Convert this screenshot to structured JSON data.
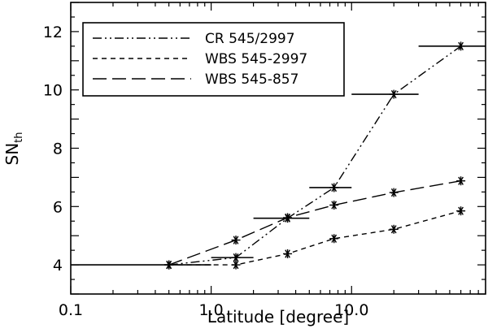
{
  "chart_data": {
    "type": "line",
    "xlabel": "Latitude [degree]",
    "ylabel_main": "SN",
    "ylabel_sub": "th",
    "xscale": "log",
    "xlim": [
      0.1,
      90
    ],
    "ylim": [
      3.0,
      13.0
    ],
    "x_ticks": [
      {
        "value": 0.1,
        "label": "0.1"
      },
      {
        "value": 1.0,
        "label": "1.0"
      },
      {
        "value": 10.0,
        "label": "10.0"
      }
    ],
    "y_ticks": [
      {
        "value": 4,
        "label": "4"
      },
      {
        "value": 6,
        "label": "6"
      },
      {
        "value": 8,
        "label": "8"
      },
      {
        "value": 10,
        "label": "10"
      },
      {
        "value": 12,
        "label": "12"
      }
    ],
    "legend_position": "top-left",
    "series": [
      {
        "name": "CR 545/2997",
        "dash": "dashdotdot",
        "x": [
          0.5,
          1.5,
          3.5,
          7.5,
          20,
          60
        ],
        "y": [
          4.0,
          4.25,
          5.6,
          6.65,
          9.85,
          11.5
        ],
        "xerr": [
          [
            0.1,
            1.0
          ],
          [
            1.0,
            2.0
          ],
          [
            2.0,
            5.0
          ],
          [
            5.0,
            10.0
          ],
          [
            10.0,
            30.0
          ],
          [
            30.0,
            90.0
          ]
        ]
      },
      {
        "name": "WBS 545-2997",
        "dash": "short",
        "x": [
          0.5,
          1.5,
          3.5,
          7.5,
          20,
          60
        ],
        "y": [
          4.0,
          4.0,
          4.38,
          4.9,
          5.22,
          5.85
        ]
      },
      {
        "name": "WBS 545-857",
        "dash": "long",
        "x": [
          0.5,
          1.5,
          3.5,
          7.5,
          20,
          60
        ],
        "y": [
          4.0,
          4.85,
          5.62,
          6.05,
          6.48,
          6.88
        ]
      }
    ]
  }
}
